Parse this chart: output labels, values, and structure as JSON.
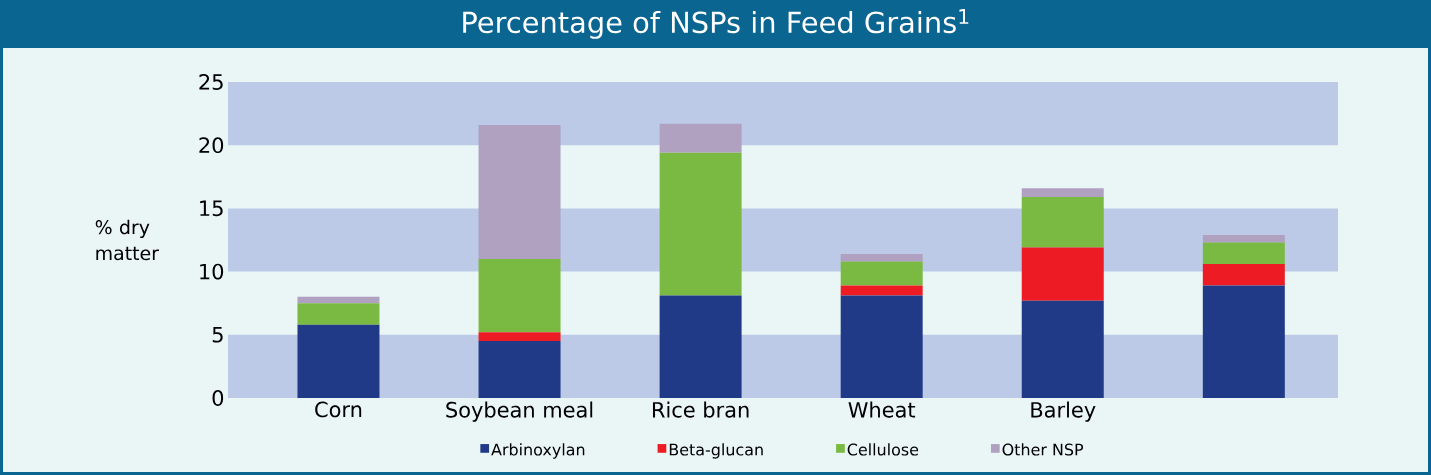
{
  "chart_data": {
    "type": "bar",
    "stacked": true,
    "title": "Percentage of NSPs in Feed Grains$^{1}$",
    "ylabel": "% dry matter",
    "categories": [
      "Corn",
      "Soybean meal",
      "Rice bran",
      "Wheat",
      "Barley",
      null
    ],
    "series": [
      {
        "name": "Arbinoxylan",
        "color": "#213a87",
        "values": [
          5.8,
          4.5,
          8.1,
          8.1,
          7.7,
          8.9
        ]
      },
      {
        "name": "Beta-glucan",
        "color": "#ed1c24",
        "values": [
          0,
          0.7,
          0,
          0.8,
          4.2,
          1.7
        ]
      },
      {
        "name": "Cellulose",
        "color": "#7aba42",
        "values": [
          1.7,
          5.8,
          11.3,
          1.9,
          4.0,
          1.7
        ]
      },
      {
        "name": "Other NSP",
        "color": "#b0a1c0",
        "values": [
          0.5,
          10.6,
          2.3,
          0.6,
          0.7,
          0.6
        ]
      }
    ],
    "ylim": [
      0,
      25
    ],
    "yticks": [
      0,
      5,
      10,
      15,
      20,
      25
    ],
    "bands": [
      {
        "axis": "y",
        "from": 0,
        "to": 5,
        "color": "#bccae8"
      },
      {
        "axis": "y",
        "from": 10,
        "to": 15,
        "color": "#bccae8"
      },
      {
        "axis": "y",
        "from": 20,
        "to": 25,
        "color": "#bccae8"
      }
    ],
    "legend": "bottom"
  }
}
